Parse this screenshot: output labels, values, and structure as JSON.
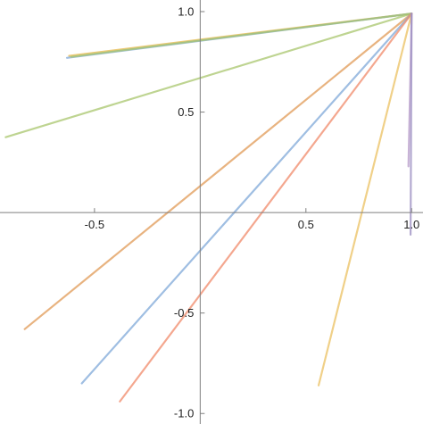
{
  "chart_data": {
    "type": "line",
    "title": "",
    "xlabel": "",
    "ylabel": "",
    "xlim": [
      -0.93,
      1.02
    ],
    "ylim": [
      -1.03,
      1.04
    ],
    "grid": false,
    "x_ticks": [
      -0.5,
      0.5,
      1.0
    ],
    "x_tick_labels": [
      "-0.5",
      "0.5",
      "1.0"
    ],
    "y_ticks": [
      1.0,
      0.5,
      -0.5,
      -1.0
    ],
    "y_tick_labels": [
      "1.0",
      "0.5",
      "-0.5",
      "-1.0"
    ],
    "series": [
      {
        "color": "#E6B84A",
        "x": [
          -0.62,
          1.0
        ],
        "y": [
          0.78,
          0.99
        ]
      },
      {
        "color": "#7FA8D8",
        "x": [
          -0.63,
          1.0
        ],
        "y": [
          0.77,
          0.99
        ]
      },
      {
        "color": "#A8C66C",
        "x": [
          -0.61,
          1.0
        ],
        "y": [
          0.775,
          0.99
        ]
      },
      {
        "color": "#A8C66C",
        "x": [
          -0.92,
          1.0
        ],
        "y": [
          0.375,
          0.99
        ]
      },
      {
        "color": "#E09A55",
        "x": [
          -0.83,
          1.0
        ],
        "y": [
          -0.58,
          0.99
        ]
      },
      {
        "color": "#7FA8D8",
        "x": [
          -0.56,
          1.0
        ],
        "y": [
          -0.85,
          0.99
        ]
      },
      {
        "color": "#F08A6A",
        "x": [
          -0.38,
          1.0
        ],
        "y": [
          -0.94,
          0.99
        ]
      },
      {
        "color": "#EBC060",
        "x": [
          0.56,
          1.0
        ],
        "y": [
          -0.86,
          0.99
        ]
      },
      {
        "color": "#B59AC8",
        "x": [
          0.985,
          1.0
        ],
        "y": [
          0.23,
          0.99
        ]
      },
      {
        "color": "#9A8CC0",
        "x": [
          0.995,
          1.0
        ],
        "y": [
          -0.11,
          0.99
        ]
      }
    ]
  }
}
